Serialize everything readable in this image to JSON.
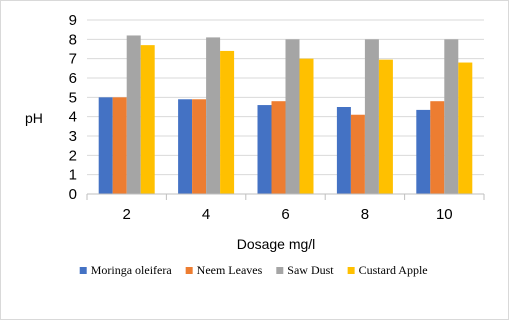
{
  "chart_data": {
    "type": "bar",
    "title": "",
    "xlabel": "Dosage mg/l",
    "ylabel": "pH",
    "categories": [
      "2",
      "4",
      "6",
      "8",
      "10"
    ],
    "ylim": [
      0,
      9
    ],
    "yticks": [
      "0",
      "1",
      "2",
      "3",
      "4",
      "5",
      "6",
      "7",
      "8",
      "9"
    ],
    "grid": true,
    "legend_position": "bottom",
    "series": [
      {
        "name": "Moringa oleifera",
        "color": "#4472c4",
        "values": [
          5.0,
          4.9,
          4.6,
          4.5,
          4.35
        ]
      },
      {
        "name": "Neem Leaves",
        "color": "#ed7d31",
        "values": [
          5.0,
          4.9,
          4.8,
          4.1,
          4.8
        ]
      },
      {
        "name": "Saw Dust",
        "color": "#a5a5a5",
        "values": [
          8.2,
          8.1,
          8.0,
          8.0,
          8.0
        ]
      },
      {
        "name": "Custard Apple",
        "color": "#ffc000",
        "values": [
          7.7,
          7.4,
          7.0,
          6.95,
          6.8
        ]
      }
    ]
  }
}
